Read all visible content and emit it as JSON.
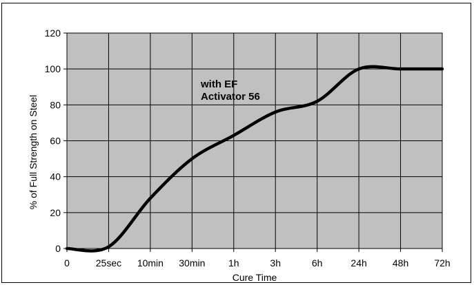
{
  "chart_data": {
    "type": "line",
    "title": "",
    "xlabel": "Cure Time",
    "ylabel": "% of Full Strength on Steel",
    "categories": [
      "0",
      "25sec",
      "10min",
      "30min",
      "1h",
      "3h",
      "6h",
      "24h",
      "48h",
      "72h"
    ],
    "ylim": [
      0,
      120
    ],
    "yticks": [
      0,
      20,
      40,
      60,
      80,
      100,
      120
    ],
    "grid": true,
    "annotation": [
      "with EF",
      "Activator 56"
    ],
    "series": [
      {
        "values": [
          0,
          1,
          28,
          50,
          63,
          76,
          82,
          100,
          100,
          100
        ],
        "color": "#000000"
      }
    ],
    "colors": {
      "plot_background": "#c0c0c0",
      "grid": "#000000",
      "line": "#000000"
    }
  }
}
